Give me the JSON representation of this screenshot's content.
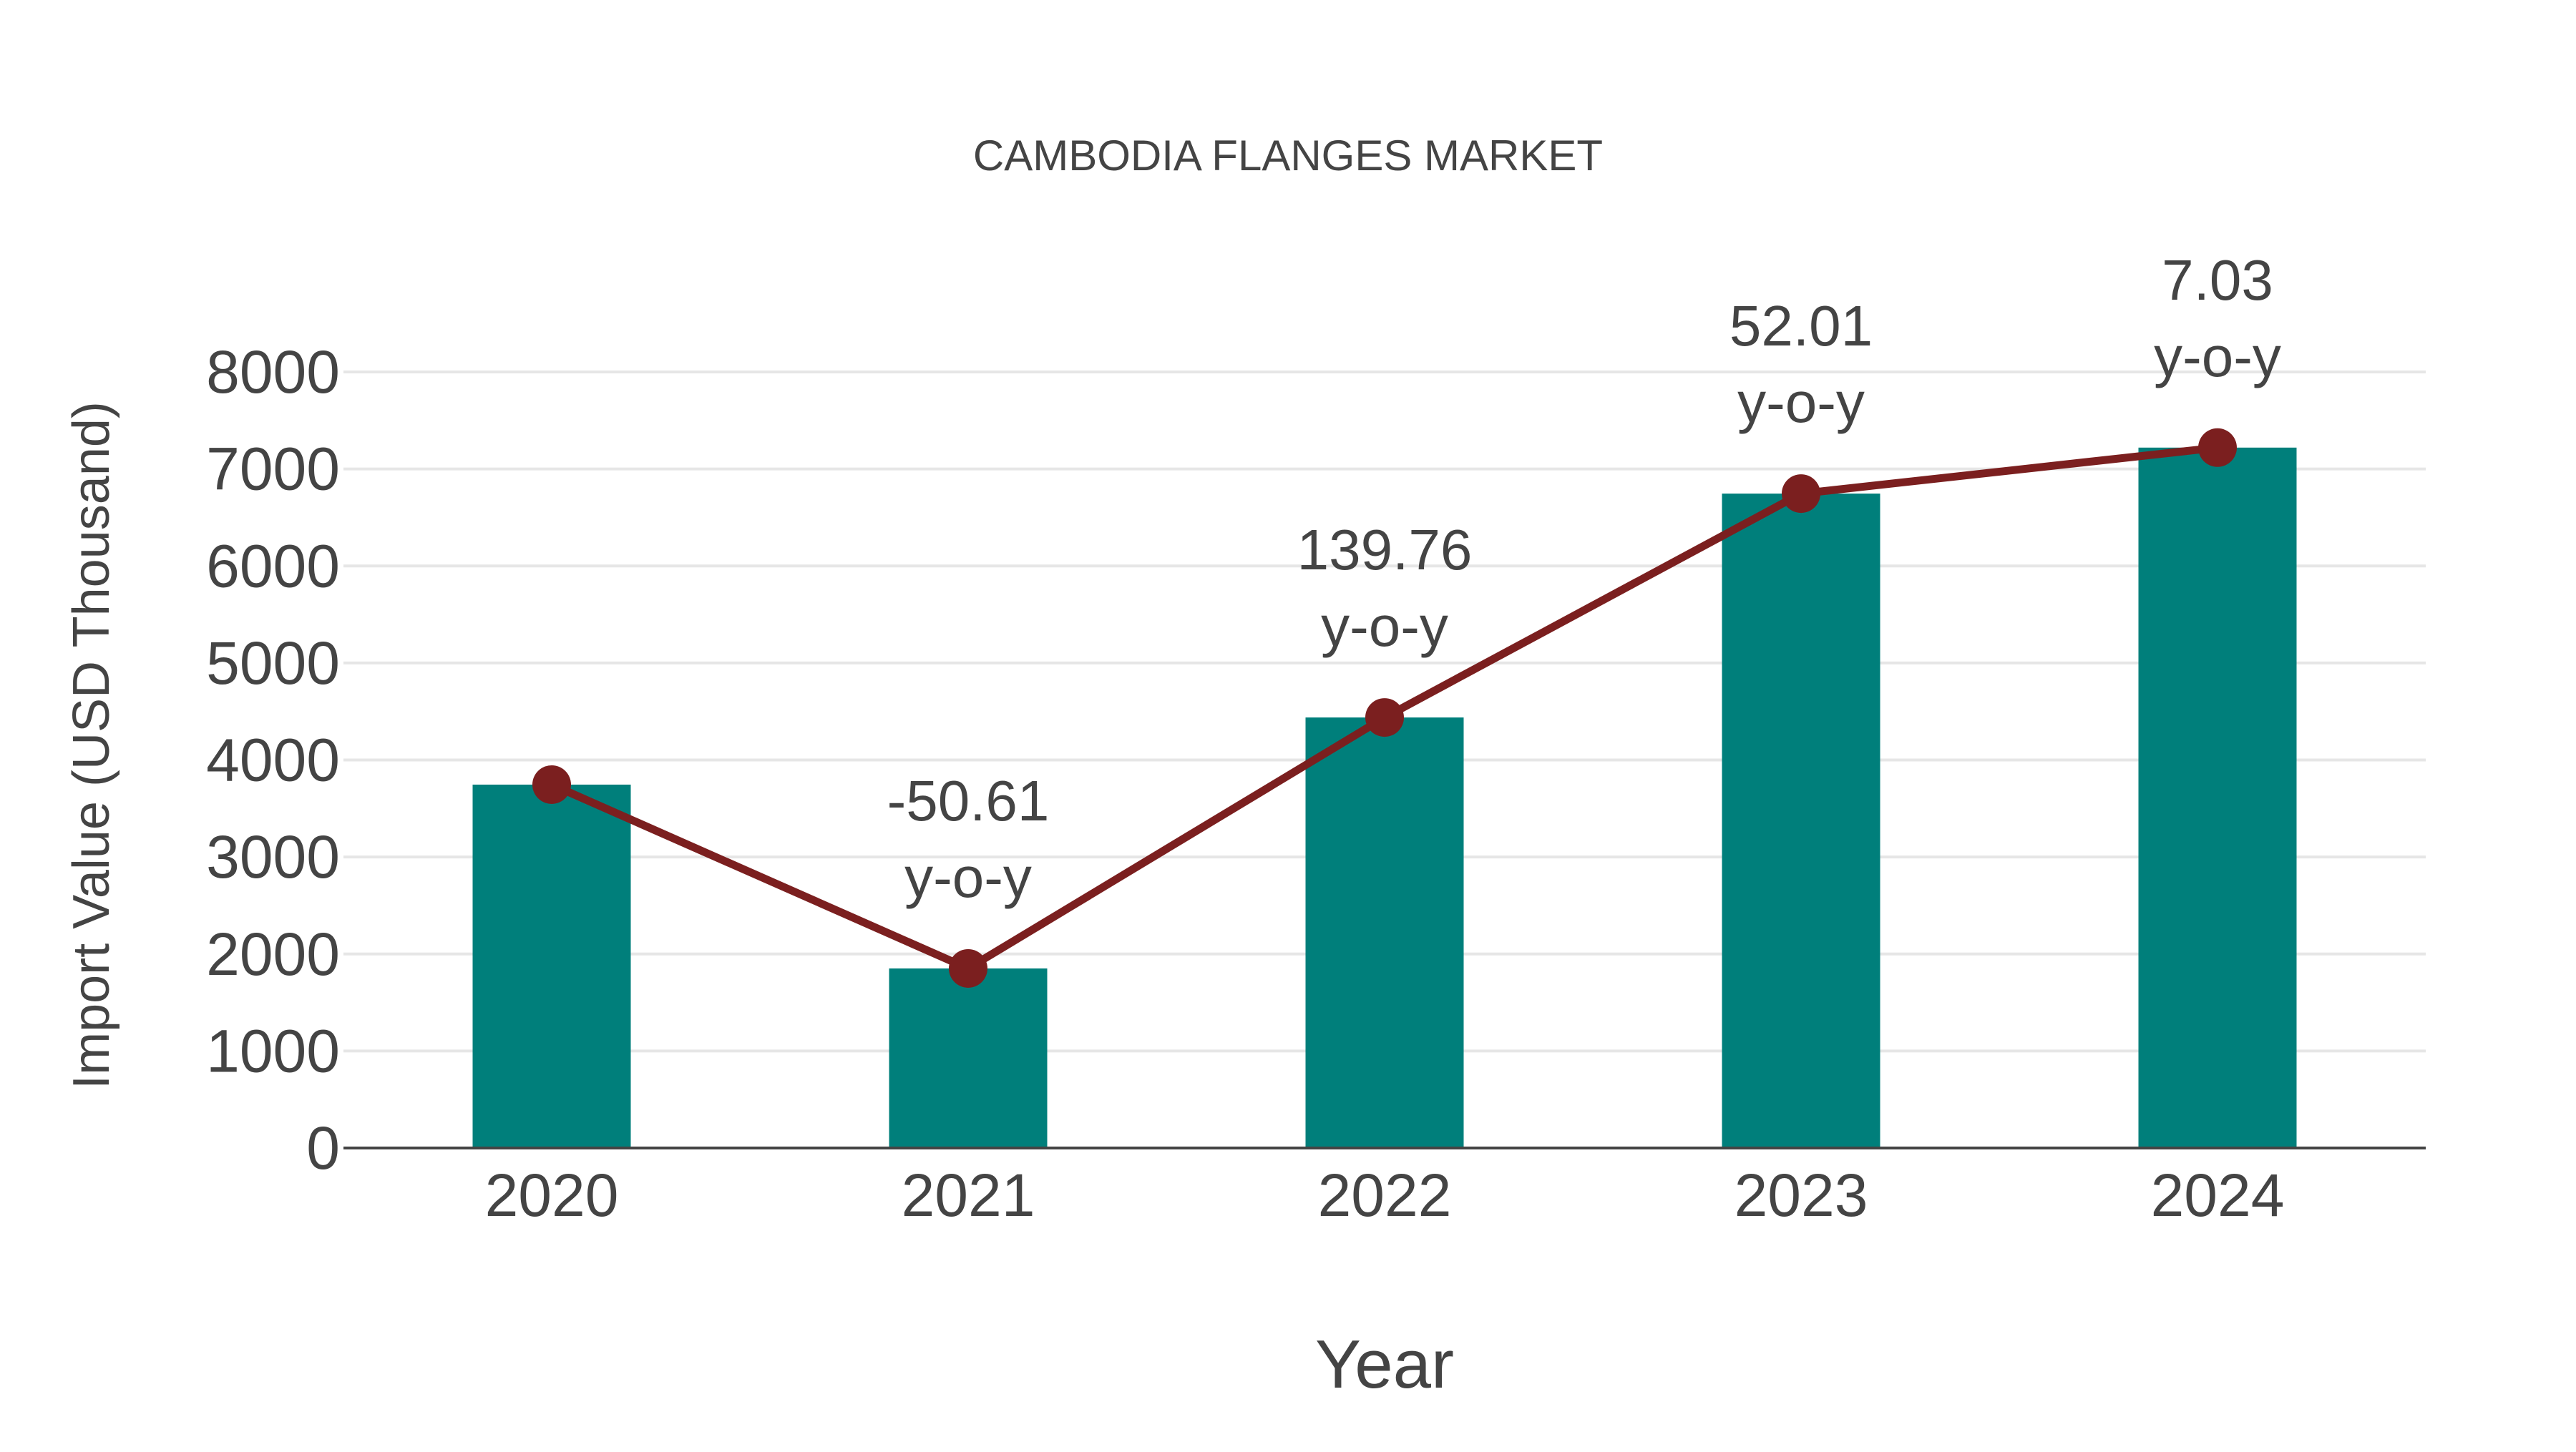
{
  "title": "CAMBODIA FLANGES MARKET",
  "colors": {
    "bar": "#007f7b",
    "line": "#7b1f1f",
    "text": "#444444",
    "grid": "#e6e6e6",
    "axis": "#444444",
    "background": "#ffffff"
  },
  "chart_data": {
    "type": "bar",
    "title": "CAMBODIA FLANGES MARKET",
    "xlabel": "Year",
    "ylabel": "Import Value (USD Thousand)",
    "categories": [
      "2020",
      "2021",
      "2022",
      "2023",
      "2024"
    ],
    "series": [
      {
        "name": "Import Value (bar)",
        "type": "bar",
        "values": [
          3746,
          1851,
          4438,
          6746,
          7220
        ]
      },
      {
        "name": "Import Value (line)",
        "type": "line",
        "values": [
          3746,
          1851,
          4438,
          6746,
          7220
        ]
      }
    ],
    "annotations": [
      {
        "category": "2021",
        "value": "-50.61",
        "suffix": "y-o-y"
      },
      {
        "category": "2022",
        "value": "139.76",
        "suffix": "y-o-y"
      },
      {
        "category": "2023",
        "value": "52.01",
        "suffix": "y-o-y"
      },
      {
        "category": "2024",
        "value": "7.03",
        "suffix": "y-o-y"
      }
    ],
    "yticks": [
      0,
      1000,
      2000,
      3000,
      4000,
      5000,
      6000,
      7000,
      8000
    ],
    "ylim": [
      0,
      8000
    ],
    "grid": true,
    "legend": "none"
  }
}
